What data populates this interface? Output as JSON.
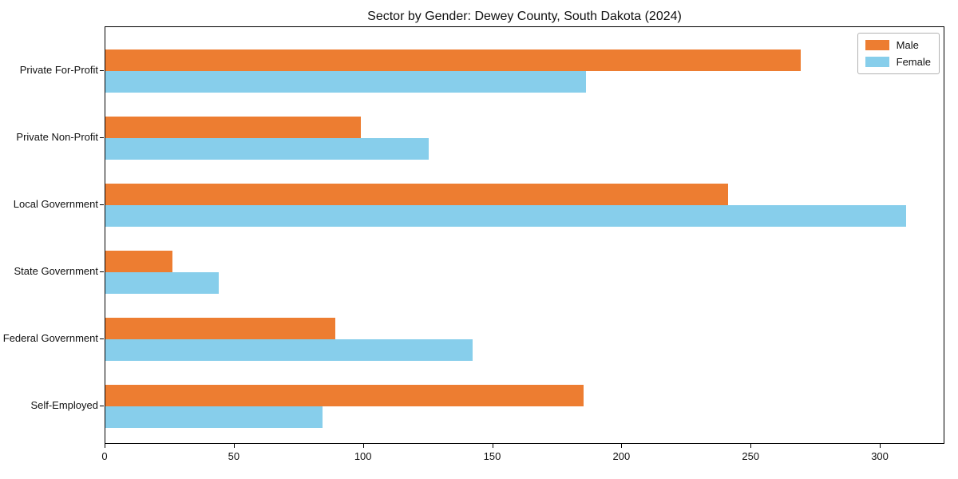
{
  "chart_data": {
    "type": "bar",
    "orientation": "horizontal",
    "title": "Sector by Gender: Dewey County, South Dakota (2024)",
    "categories": [
      "Private For-Profit",
      "Private Non-Profit",
      "Local Government",
      "State Government",
      "Federal Government",
      "Self-Employed"
    ],
    "series": [
      {
        "name": "Male",
        "color": "#ED7D31",
        "values": [
          269,
          99,
          241,
          26,
          89,
          185
        ]
      },
      {
        "name": "Female",
        "color": "#87CEEB",
        "values": [
          186,
          125,
          310,
          44,
          142,
          84
        ]
      }
    ],
    "xticks": [
      0,
      50,
      100,
      150,
      200,
      250,
      300
    ],
    "xlim": [
      0,
      325
    ],
    "xlabel": "",
    "ylabel": "",
    "grid": false,
    "legend_position": "upper right",
    "background_color": "#ffffff",
    "spine_color": "#000000"
  }
}
